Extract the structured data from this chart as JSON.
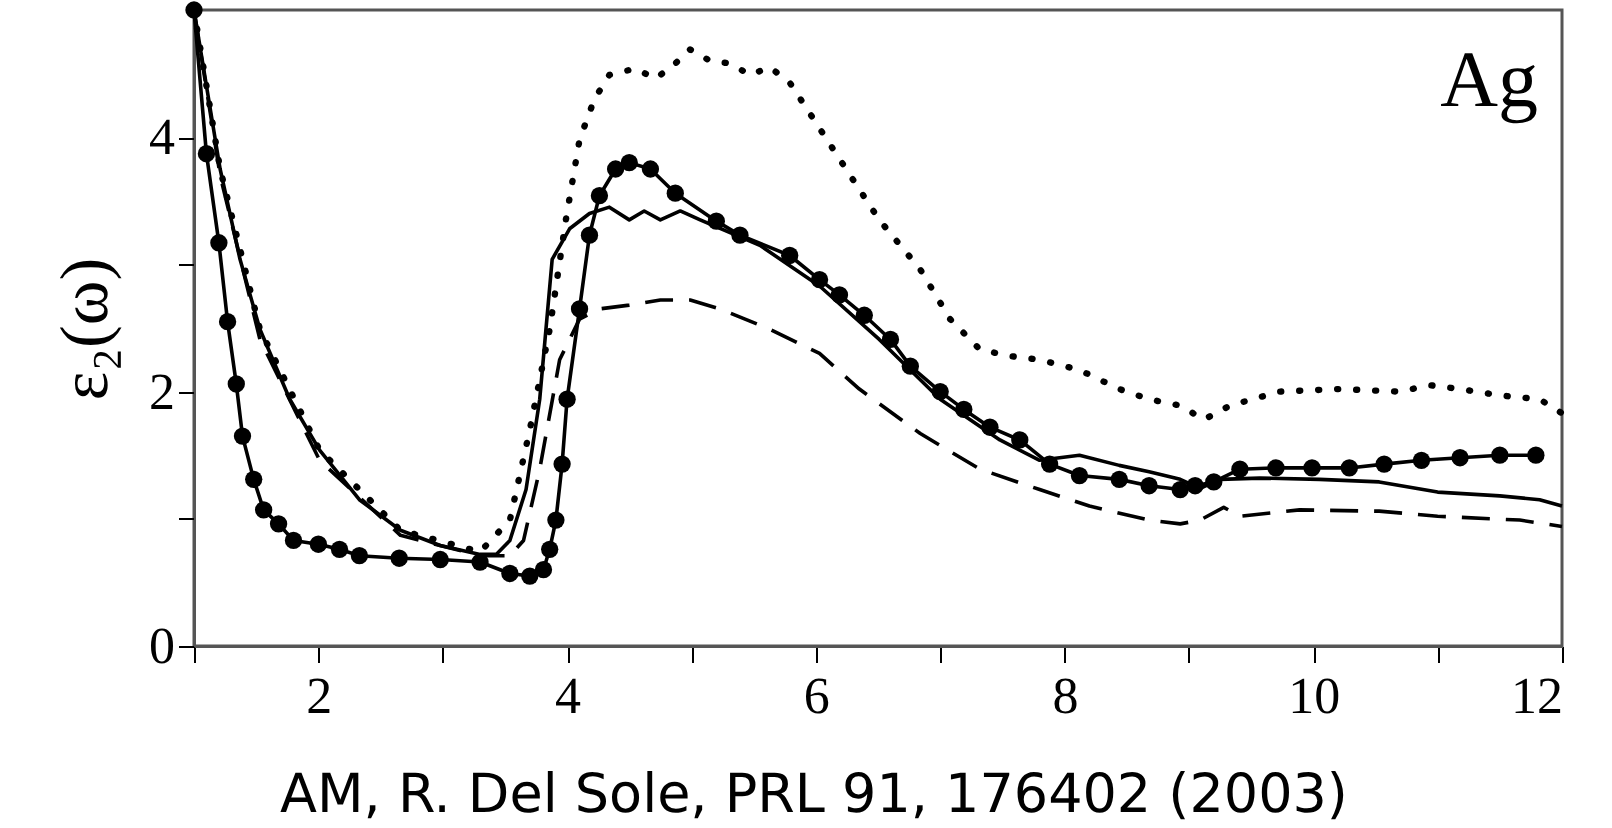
{
  "chart_data": {
    "type": "line",
    "ylabel": "ε₂(ω)",
    "annotations": [
      "Ag",
      "AM, R. Del Sole, PRL 91, 176402 (2003)"
    ],
    "xlim": [
      1,
      12
    ],
    "xticks": [
      {
        "value": 1,
        "label": null
      },
      2,
      {
        "value": 3,
        "label": null
      },
      4,
      {
        "value": 5,
        "label": null
      },
      6,
      {
        "value": 7,
        "label": null
      },
      8,
      {
        "value": 9,
        "label": null
      },
      10,
      {
        "value": 11,
        "label": null
      },
      12
    ],
    "ylim": [
      0,
      5
    ],
    "yticks": [
      0,
      {
        "value": 1,
        "label": null
      },
      2,
      {
        "value": 3,
        "label": null
      },
      4
    ],
    "grid": false,
    "series": [
      {
        "color": "#000000",
        "line_style": "solid",
        "marker": "circle",
        "x": [
          1.0,
          1.1,
          1.2,
          1.27,
          1.34,
          1.39,
          1.48,
          1.56,
          1.68,
          1.8,
          2.0,
          2.17,
          2.33,
          2.65,
          2.98,
          3.3,
          3.54,
          3.7,
          3.81,
          3.86,
          3.91,
          3.96,
          4.0,
          4.1,
          4.18,
          4.26,
          4.39,
          4.5,
          4.67,
          4.87,
          5.2,
          5.39,
          5.79,
          6.03,
          6.19,
          6.39,
          6.6,
          6.76,
          7.0,
          7.19,
          7.4,
          7.64,
          7.88,
          8.12,
          8.44,
          8.68,
          8.93,
          9.05,
          9.2,
          9.41,
          9.7,
          9.99,
          10.29,
          10.57,
          10.87,
          11.18,
          11.5,
          11.79
        ],
        "values": [
          5.0,
          3.87,
          3.17,
          2.55,
          2.06,
          1.65,
          1.31,
          1.07,
          0.96,
          0.83,
          0.8,
          0.76,
          0.71,
          0.69,
          0.68,
          0.66,
          0.57,
          0.55,
          0.6,
          0.76,
          0.99,
          1.43,
          1.94,
          2.65,
          3.23,
          3.54,
          3.75,
          3.8,
          3.75,
          3.56,
          3.34,
          3.23,
          3.07,
          2.88,
          2.76,
          2.6,
          2.41,
          2.2,
          2.0,
          1.86,
          1.72,
          1.62,
          1.43,
          1.34,
          1.31,
          1.26,
          1.23,
          1.26,
          1.29,
          1.39,
          1.4,
          1.4,
          1.4,
          1.43,
          1.46,
          1.48,
          1.5,
          1.5
        ]
      },
      {
        "color": "#000000",
        "line_style": "solid",
        "x": [
          1.0,
          1.21,
          1.37,
          1.53,
          1.77,
          2.01,
          2.33,
          2.66,
          2.98,
          3.3,
          3.43,
          3.54,
          3.67,
          3.78,
          3.88,
          4.02,
          4.18,
          4.34,
          4.5,
          4.62,
          4.75,
          4.91,
          5.07,
          5.55,
          6.03,
          6.51,
          7.0,
          7.48,
          7.8,
          8.12,
          8.44,
          8.68,
          8.93,
          9.09,
          9.25,
          9.57,
          10.05,
          10.53,
          11.0,
          11.5,
          11.82,
          12.0
        ],
        "values": [
          5.0,
          3.75,
          3.04,
          2.49,
          1.94,
          1.54,
          1.15,
          0.91,
          0.79,
          0.72,
          0.72,
          0.83,
          1.23,
          1.94,
          3.04,
          3.28,
          3.4,
          3.45,
          3.35,
          3.42,
          3.35,
          3.42,
          3.35,
          3.15,
          2.83,
          2.41,
          1.94,
          1.62,
          1.46,
          1.5,
          1.42,
          1.37,
          1.31,
          1.24,
          1.31,
          1.32,
          1.31,
          1.29,
          1.21,
          1.18,
          1.15,
          1.1
        ]
      },
      {
        "color": "#000000",
        "line_style": "dashed",
        "x": [
          1.0,
          1.21,
          1.53,
          2.01,
          2.66,
          3.3,
          3.54,
          3.65,
          3.78,
          3.94,
          4.1,
          4.26,
          4.5,
          4.75,
          4.99,
          5.23,
          5.63,
          6.03,
          6.35,
          6.84,
          7.32,
          7.8,
          8.2,
          8.68,
          8.93,
          9.09,
          9.28,
          9.41,
          9.89,
          10.53,
          11.0,
          11.66,
          12.0
        ],
        "values": [
          5.0,
          3.7,
          2.41,
          1.46,
          0.87,
          0.71,
          0.71,
          0.83,
          1.39,
          2.25,
          2.57,
          2.65,
          2.68,
          2.72,
          2.72,
          2.65,
          2.49,
          2.3,
          2.02,
          1.67,
          1.39,
          1.23,
          1.1,
          0.99,
          0.96,
          0.99,
          1.09,
          1.02,
          1.07,
          1.06,
          1.02,
          0.99,
          0.94
        ]
      },
      {
        "color": "#000000",
        "line_style": "dotted",
        "x": [
          1.0,
          1.21,
          1.53,
          2.01,
          2.66,
          3.3,
          3.54,
          3.7,
          3.86,
          3.99,
          4.1,
          4.22,
          4.34,
          4.55,
          4.71,
          4.86,
          4.99,
          5.15,
          5.31,
          5.47,
          5.63,
          5.79,
          5.95,
          6.19,
          6.51,
          6.84,
          7.08,
          7.32,
          7.56,
          7.8,
          8.12,
          8.44,
          8.68,
          8.93,
          9.12,
          9.33,
          9.73,
          10.21,
          10.69,
          10.94,
          11.18,
          11.5,
          11.82,
          12.0
        ],
        "values": [
          5.0,
          3.75,
          2.49,
          1.54,
          0.91,
          0.74,
          0.99,
          1.7,
          2.49,
          3.35,
          3.98,
          4.3,
          4.49,
          4.54,
          4.46,
          4.57,
          4.69,
          4.6,
          4.58,
          4.49,
          4.55,
          4.43,
          4.19,
          3.83,
          3.35,
          2.96,
          2.57,
          2.33,
          2.28,
          2.25,
          2.17,
          2.02,
          1.94,
          1.89,
          1.78,
          1.89,
          2.0,
          2.02,
          2.0,
          2.05,
          2.02,
          1.97,
          1.94,
          1.83
        ]
      }
    ]
  }
}
